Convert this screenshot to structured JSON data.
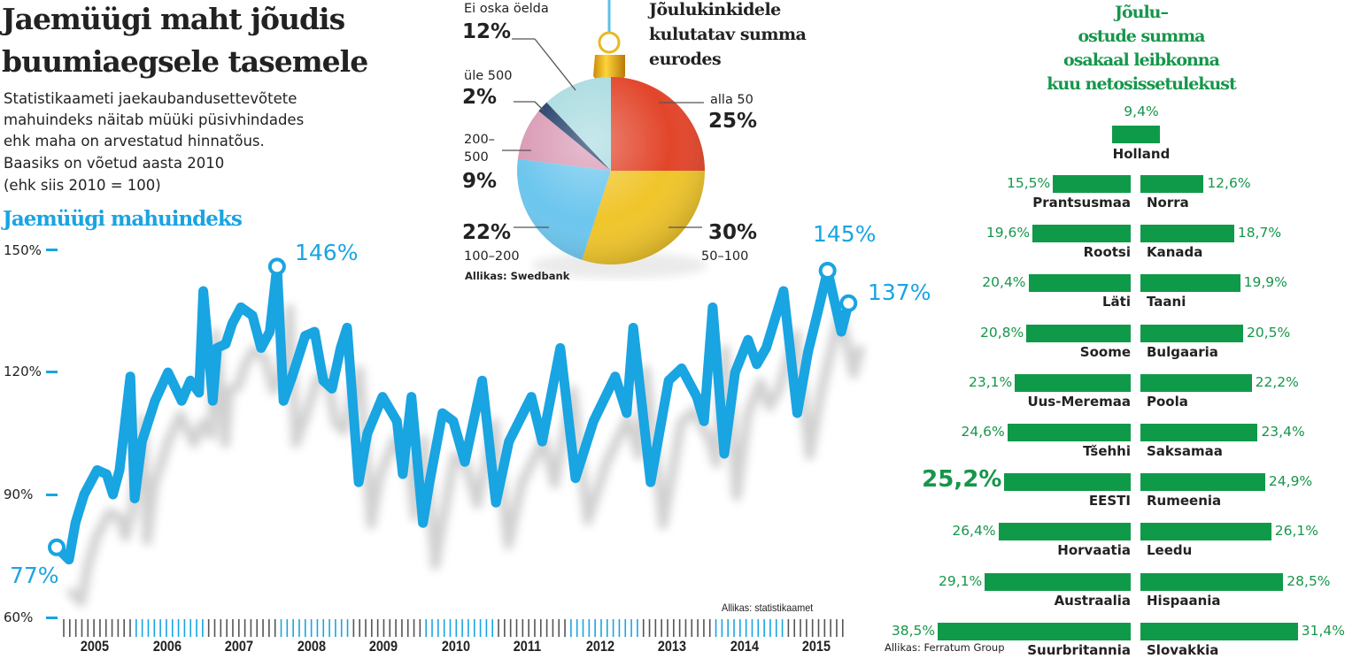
{
  "headline": [
    "Jaemüügi maht jõudis",
    "buumiaegsele tasemele"
  ],
  "intro": [
    "Statistikaameti jaekaubandusettevõtete",
    "mahuindeks näitab müüki püsivhindades",
    "ehk maha on arvestatud hinnatõus.",
    "Baasiks on võetud aasta 2010",
    "(ehk siis 2010 = 100)"
  ],
  "colors": {
    "line": "#19a4e2",
    "bar": "#0f9a4a",
    "tick_grey": "#555555",
    "tick_blue": "#19a4e2"
  },
  "chart_data": [
    {
      "type": "line",
      "title": "Jaemüügi mahuindeks",
      "xlabel": "",
      "ylabel": "",
      "ylim": [
        60,
        150
      ],
      "xlim": [
        2005,
        2016
      ],
      "yticks": [
        "150%",
        "120%",
        "90%",
        "60%"
      ],
      "ytick_values": [
        150,
        120,
        90,
        60
      ],
      "xticks": [
        "2005",
        "2006",
        "2007",
        "2008",
        "2009",
        "2010",
        "2011",
        "2012",
        "2013",
        "2014",
        "2015"
      ],
      "highlighted_years": [
        "2006",
        "2008",
        "2010",
        "2012",
        "2014"
      ],
      "source": "Allikas: statistikaamet",
      "annotations": [
        {
          "label": "77%",
          "x": 2005.0,
          "y": 77
        },
        {
          "label": "146%",
          "x": 2008.05,
          "y": 146
        },
        {
          "label": "145%",
          "x": 2015.67,
          "y": 145
        },
        {
          "label": "137%",
          "x": 2015.96,
          "y": 137
        }
      ],
      "series": [
        {
          "name": "Jaemüügi mahuindeks",
          "x": [
            2005.0,
            2005.17,
            2005.26,
            2005.38,
            2005.56,
            2005.69,
            2005.78,
            2005.87,
            2006.02,
            2006.08,
            2006.18,
            2006.36,
            2006.54,
            2006.73,
            2006.85,
            2006.97,
            2007.03,
            2007.16,
            2007.22,
            2007.34,
            2007.43,
            2007.55,
            2007.71,
            2007.83,
            2007.95,
            2008.05,
            2008.14,
            2008.26,
            2008.44,
            2008.57,
            2008.69,
            2008.81,
            2008.93,
            2009.02,
            2009.18,
            2009.3,
            2009.51,
            2009.71,
            2009.79,
            2009.91,
            2010.07,
            2010.16,
            2010.34,
            2010.49,
            2010.65,
            2010.89,
            2011.08,
            2011.26,
            2011.57,
            2011.72,
            2011.97,
            2012.18,
            2012.43,
            2012.73,
            2012.89,
            2012.98,
            2013.22,
            2013.47,
            2013.65,
            2013.86,
            2013.96,
            2014.08,
            2014.24,
            2014.39,
            2014.57,
            2014.69,
            2014.82,
            2015.06,
            2015.25,
            2015.4,
            2015.55,
            2015.67,
            2015.86,
            2015.96
          ],
          "y": [
            77,
            74,
            83,
            90,
            96,
            95,
            90,
            96,
            119,
            89,
            103,
            113,
            120,
            113,
            118,
            115,
            140,
            113,
            126,
            127,
            132,
            136,
            134,
            126,
            130,
            146,
            113,
            119,
            129,
            130,
            118,
            116,
            126,
            131,
            93,
            105,
            114,
            108,
            95,
            114,
            83,
            93,
            110,
            108,
            98,
            118,
            88,
            103,
            114,
            103,
            126,
            94,
            108,
            119,
            110,
            131,
            93,
            118,
            121,
            114,
            108,
            136,
            100,
            120,
            128,
            122,
            126,
            140,
            110,
            125,
            136,
            145,
            130,
            137
          ]
        }
      ]
    },
    {
      "type": "pie",
      "title": "Jõulukinkidele kulutatav summa eurodes",
      "title_lines": [
        "Jõulukinkidele",
        "kulutatav summa",
        "eurodes"
      ],
      "source": "Allikas: Swedbank",
      "slices": [
        {
          "label": "alla 50",
          "value": 25,
          "text": "25%",
          "color": "#e2452a"
        },
        {
          "label": "50–100",
          "value": 30,
          "text": "30%",
          "color": "#f0c52a"
        },
        {
          "label": "100–200",
          "value": 22,
          "text": "22%",
          "color": "#6cc6ee"
        },
        {
          "label": "200–500",
          "label_lines": [
            "200–",
            "500"
          ],
          "value": 9,
          "text": "9%",
          "color": "#d99ab4"
        },
        {
          "label": "üle 500",
          "value": 2,
          "text": "2%",
          "color": "#1f3b66"
        },
        {
          "label": "Ei oska öelda",
          "value": 12,
          "text": "12%",
          "color": "#a9dbe0"
        }
      ]
    },
    {
      "type": "bar",
      "title": "Jõulu-ostude summa osakaal leibkonna kuu netosissetulekust",
      "title_lines": [
        "Jõulu–",
        "ostude summa",
        "osakaal leibkonna",
        "kuu netosissetulekust"
      ],
      "source": "Allikas: Ferratum Group",
      "top": {
        "country": "Holland",
        "value": 9.4,
        "text": "9,4%"
      },
      "rows": [
        {
          "left": {
            "country": "Prantsusmaa",
            "value": 15.5,
            "text": "15,5%"
          },
          "right": {
            "country": "Norra",
            "value": 12.6,
            "text": "12,6%"
          }
        },
        {
          "left": {
            "country": "Rootsi",
            "value": 19.6,
            "text": "19,6%"
          },
          "right": {
            "country": "Kanada",
            "value": 18.7,
            "text": "18,7%"
          }
        },
        {
          "left": {
            "country": "Läti",
            "value": 20.4,
            "text": "20,4%"
          },
          "right": {
            "country": "Taani",
            "value": 19.9,
            "text": "19,9%"
          }
        },
        {
          "left": {
            "country": "Soome",
            "value": 20.8,
            "text": "20,8%"
          },
          "right": {
            "country": "Bulgaaria",
            "value": 20.5,
            "text": "20,5%"
          }
        },
        {
          "left": {
            "country": "Uus-Meremaa",
            "value": 23.1,
            "text": "23,1%"
          },
          "right": {
            "country": "Poola",
            "value": 22.2,
            "text": "22,2%"
          }
        },
        {
          "left": {
            "country": "Tšehhi",
            "value": 24.6,
            "text": "24,6%"
          },
          "right": {
            "country": "Saksamaa",
            "value": 23.4,
            "text": "23,4%"
          }
        },
        {
          "left": {
            "country": "EESTI",
            "value": 25.2,
            "text": "25,2%",
            "highlight": true
          },
          "right": {
            "country": "Rumeenia",
            "value": 24.9,
            "text": "24,9%"
          }
        },
        {
          "left": {
            "country": "Horvaatia",
            "value": 26.4,
            "text": "26,4%"
          },
          "right": {
            "country": "Leedu",
            "value": 26.1,
            "text": "26,1%"
          }
        },
        {
          "left": {
            "country": "Austraalia",
            "value": 29.1,
            "text": "29,1%"
          },
          "right": {
            "country": "Hispaania",
            "value": 28.5,
            "text": "28,5%"
          }
        },
        {
          "left": {
            "country": "Suurbritannia",
            "value": 38.5,
            "text": "38,5%"
          },
          "right": {
            "country": "Slovakkia",
            "value": 31.4,
            "text": "31,4%"
          }
        }
      ]
    }
  ]
}
